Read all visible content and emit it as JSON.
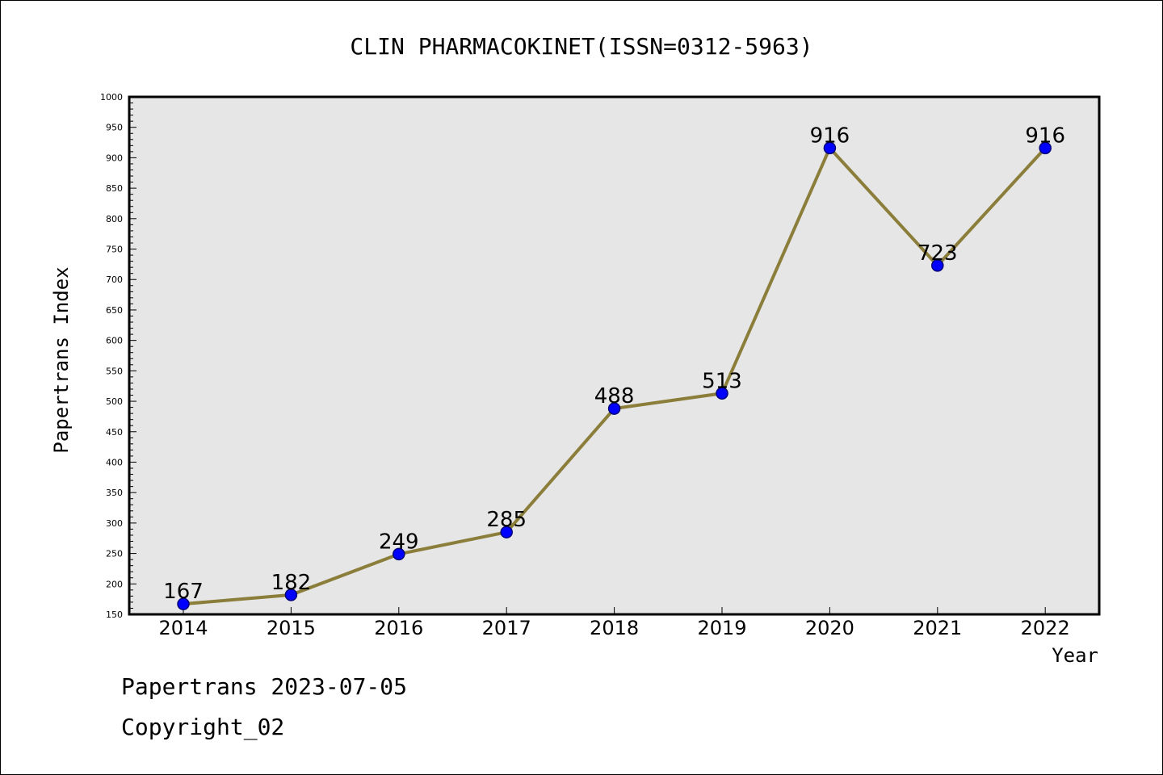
{
  "chart_data": {
    "type": "line",
    "title": "CLIN PHARMACOKINET(ISSN=0312-5963)",
    "xlabel": "Year",
    "ylabel": "Papertrans Index",
    "categories": [
      "2014",
      "2015",
      "2016",
      "2017",
      "2018",
      "2019",
      "2020",
      "2021",
      "2022"
    ],
    "series": [
      {
        "values": [
          167,
          182,
          249,
          285,
          488,
          513,
          916,
          723,
          916
        ]
      }
    ],
    "data_labels": [
      "167",
      "182",
      "249",
      "285",
      "488",
      "513",
      "916",
      "723",
      "916"
    ],
    "ylim": [
      150,
      1000
    ],
    "yticks": [
      "150",
      "200",
      "250",
      "300",
      "350",
      "400",
      "450",
      "500",
      "550",
      "600",
      "650",
      "700",
      "750",
      "800",
      "850",
      "900",
      "950",
      "1000"
    ],
    "grid": false,
    "colors": {
      "line": "#8b7d3a",
      "marker": "#0000ff",
      "plot_background": "#e6e6e6"
    }
  },
  "footer": {
    "line1": "Papertrans 2023-07-05",
    "line2": "Copyright_02"
  }
}
